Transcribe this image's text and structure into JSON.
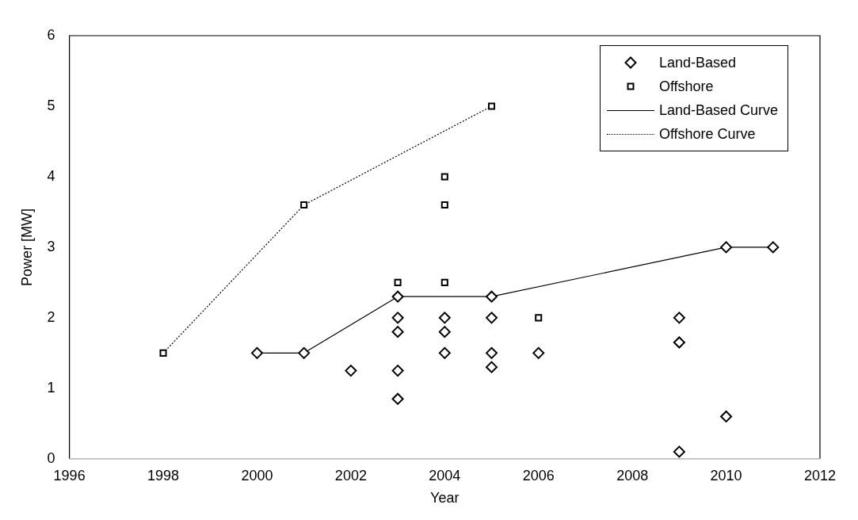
{
  "chart_data": {
    "type": "scatter",
    "xlabel": "Year",
    "ylabel": "Power [MW]",
    "xlim": [
      1996,
      2012
    ],
    "xticks": [
      1996,
      1998,
      2000,
      2002,
      2004,
      2006,
      2008,
      2010,
      2012
    ],
    "ylim": [
      0,
      6
    ],
    "yticks": [
      0,
      1,
      2,
      3,
      4,
      5,
      6
    ],
    "grid": false,
    "legend": "top right",
    "series": [
      {
        "name": "Land-Based",
        "type": "scatter",
        "marker": "diamond",
        "color": "#000000",
        "x": [
          2000,
          2001,
          2002,
          2003,
          2003,
          2003,
          2003,
          2003,
          2004,
          2004,
          2004,
          2005,
          2005,
          2005,
          2005,
          2006,
          2009,
          2009,
          2009,
          2010,
          2010,
          2011
        ],
        "values": [
          1.5,
          1.5,
          1.25,
          2.3,
          2.0,
          1.8,
          1.25,
          0.85,
          2.0,
          1.8,
          1.5,
          2.3,
          2.0,
          1.5,
          1.3,
          1.5,
          2.0,
          1.65,
          0.1,
          3.0,
          0.6,
          3.0
        ]
      },
      {
        "name": "Offshore",
        "type": "scatter",
        "marker": "square",
        "color": "#000000",
        "x": [
          1998,
          2001,
          2003,
          2004,
          2004,
          2004,
          2005,
          2006
        ],
        "values": [
          1.5,
          3.6,
          2.5,
          4.0,
          3.6,
          2.5,
          5.0,
          2.0
        ]
      },
      {
        "name": "Land-Based Curve",
        "type": "line",
        "marker": "none",
        "line_style": "solid",
        "color": "#000000",
        "x": [
          2000,
          2001,
          2003,
          2005,
          2010,
          2011
        ],
        "values": [
          1.5,
          1.5,
          2.3,
          2.3,
          3.0,
          3.0
        ]
      },
      {
        "name": "Offshore Curve",
        "type": "line",
        "marker": "none",
        "line_style": "dotted",
        "color": "#000000",
        "x": [
          1998,
          2001,
          2005
        ],
        "values": [
          1.5,
          3.6,
          5.0
        ]
      }
    ]
  }
}
